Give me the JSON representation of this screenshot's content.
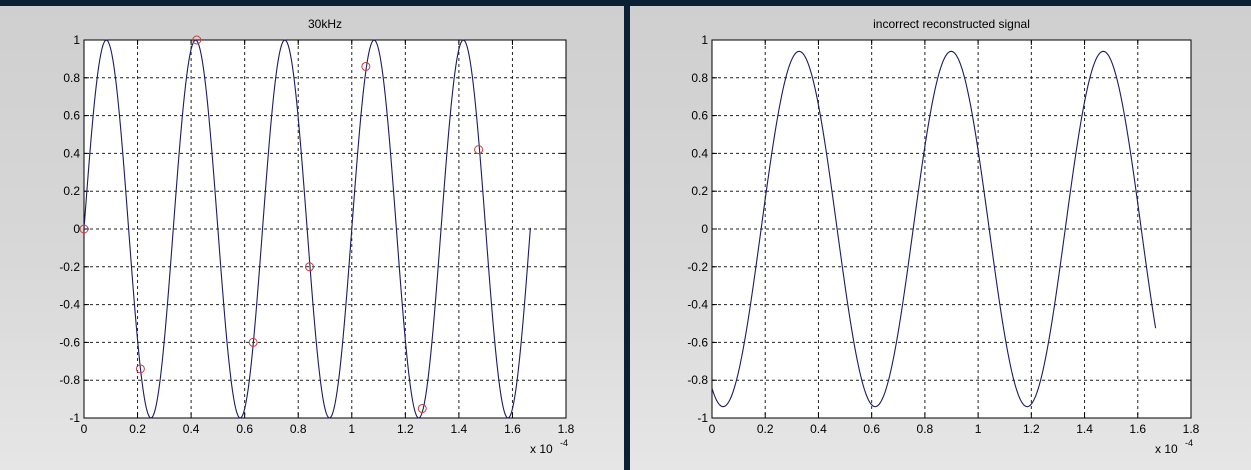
{
  "colors": {
    "curve": "#1c1c64",
    "sample_marker": "#c04040",
    "axes_bg": "#ffffff",
    "grid": "#222222",
    "panel_divider": "#0b2033"
  },
  "chart_data": [
    {
      "type": "line",
      "title": "30kHz",
      "xlabel": "",
      "ylabel": "",
      "x_exponent_label": "x 10",
      "x_exponent_power": "-4",
      "xlim": [
        0,
        1.8
      ],
      "ylim": [
        -1,
        1
      ],
      "xticks": [
        "0",
        "0.2",
        "0.4",
        "0.6",
        "0.8",
        "1",
        "1.2",
        "1.4",
        "1.6",
        "1.8"
      ],
      "yticks": [
        "1",
        "0.8",
        "0.6",
        "0.4",
        "0.2",
        "0",
        "-0.2",
        "-0.4",
        "-0.6",
        "-0.8",
        "-1"
      ],
      "grid": true,
      "series": [
        {
          "kind": "continuous-line",
          "function": "sin(2*pi*30000*t)",
          "frequency_hz": 30000,
          "x_start": 0,
          "x_end": 1.667,
          "samples": 400
        },
        {
          "kind": "sample-markers",
          "marker": "circle",
          "x": [
            0,
            0.2105,
            0.4211,
            0.6316,
            0.8421,
            1.0526,
            1.2632,
            1.4737
          ],
          "y": [
            0,
            -0.74,
            1,
            -0.6,
            -0.2,
            0.86,
            -0.95,
            0.42
          ]
        }
      ]
    },
    {
      "type": "line",
      "title": "incorrect reconstructed signal",
      "xlabel": "",
      "ylabel": "",
      "x_exponent_label": "x 10",
      "x_exponent_power": "-4",
      "xlim": [
        0,
        1.8
      ],
      "ylim": [
        -1,
        1
      ],
      "xticks": [
        "0",
        "0.2",
        "0.4",
        "0.6",
        "0.8",
        "1",
        "1.2",
        "1.4",
        "1.6",
        "1.8"
      ],
      "yticks": [
        "1",
        "0.8",
        "0.6",
        "0.4",
        "0.2",
        "0",
        "-0.2",
        "-0.4",
        "-0.6",
        "-0.8",
        "-1"
      ],
      "grid": true,
      "series": [
        {
          "kind": "continuous-line",
          "function": "0.94*cos(2*pi*17500*t - 3.6)",
          "amplitude": 0.94,
          "frequency_hz": 17500,
          "phase_rad": -3.6,
          "x_start": 0,
          "x_end": 1.667,
          "samples": 400
        }
      ]
    }
  ]
}
